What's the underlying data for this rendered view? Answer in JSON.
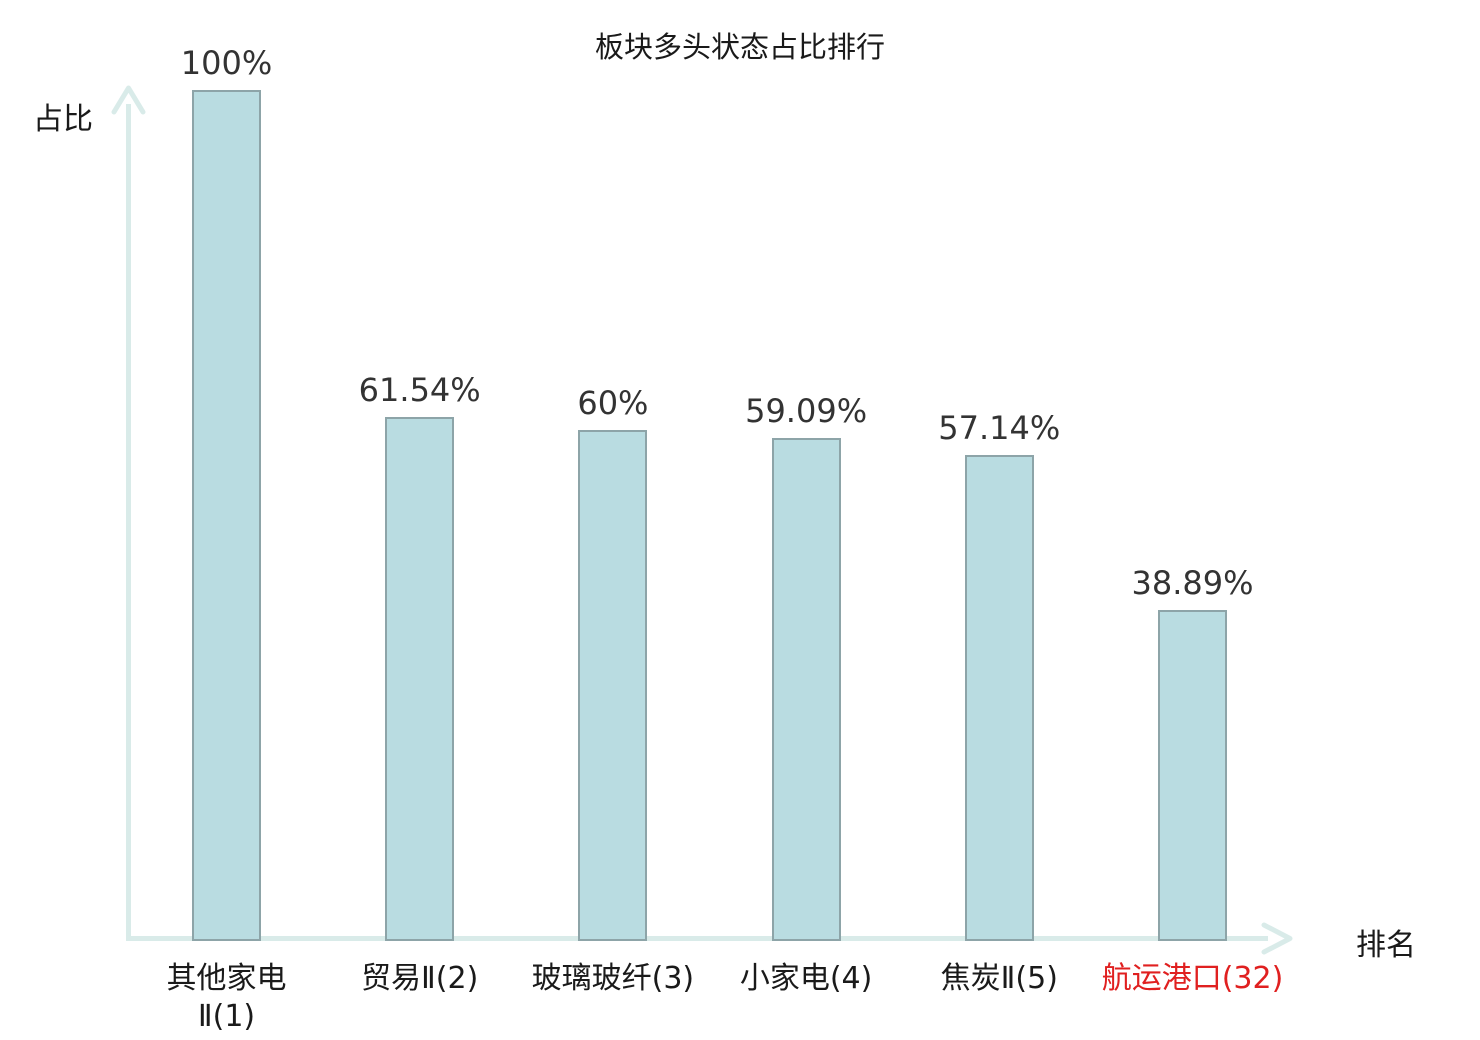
{
  "chart_data": {
    "type": "bar",
    "title": "板块多头状态占比排行",
    "xlabel": "排名",
    "ylabel": "占比",
    "categories": [
      "其他家电Ⅱ(1)",
      "贸易Ⅱ(2)",
      "玻璃玻纤(3)",
      "小家电(4)",
      "焦炭Ⅱ(5)",
      "航运港口(32)"
    ],
    "category_display": [
      "其他家电\nⅡ(1)",
      "贸易Ⅱ(2)",
      "玻璃玻纤(3)",
      "小家电(4)",
      "焦炭Ⅱ(5)",
      "航运港口(32)"
    ],
    "values": [
      100,
      61.54,
      60,
      59.09,
      57.14,
      38.89
    ],
    "value_labels": [
      "100%",
      "61.54%",
      "60%",
      "59.09%",
      "57.14%",
      "38.89%"
    ],
    "category_colors": [
      "#1a1a1a",
      "#1a1a1a",
      "#1a1a1a",
      "#1a1a1a",
      "#1a1a1a",
      "#e02020"
    ],
    "highlight_category": "航运港口(32)",
    "highlight_color": "#e02020",
    "ylim": [
      0,
      100
    ],
    "grid": false,
    "legend": "none",
    "colors": {
      "bar_fill": "#b9dce1",
      "bar_border": "#8da4a8",
      "axis": "#d9ebe9",
      "value_label": "#333333"
    }
  }
}
